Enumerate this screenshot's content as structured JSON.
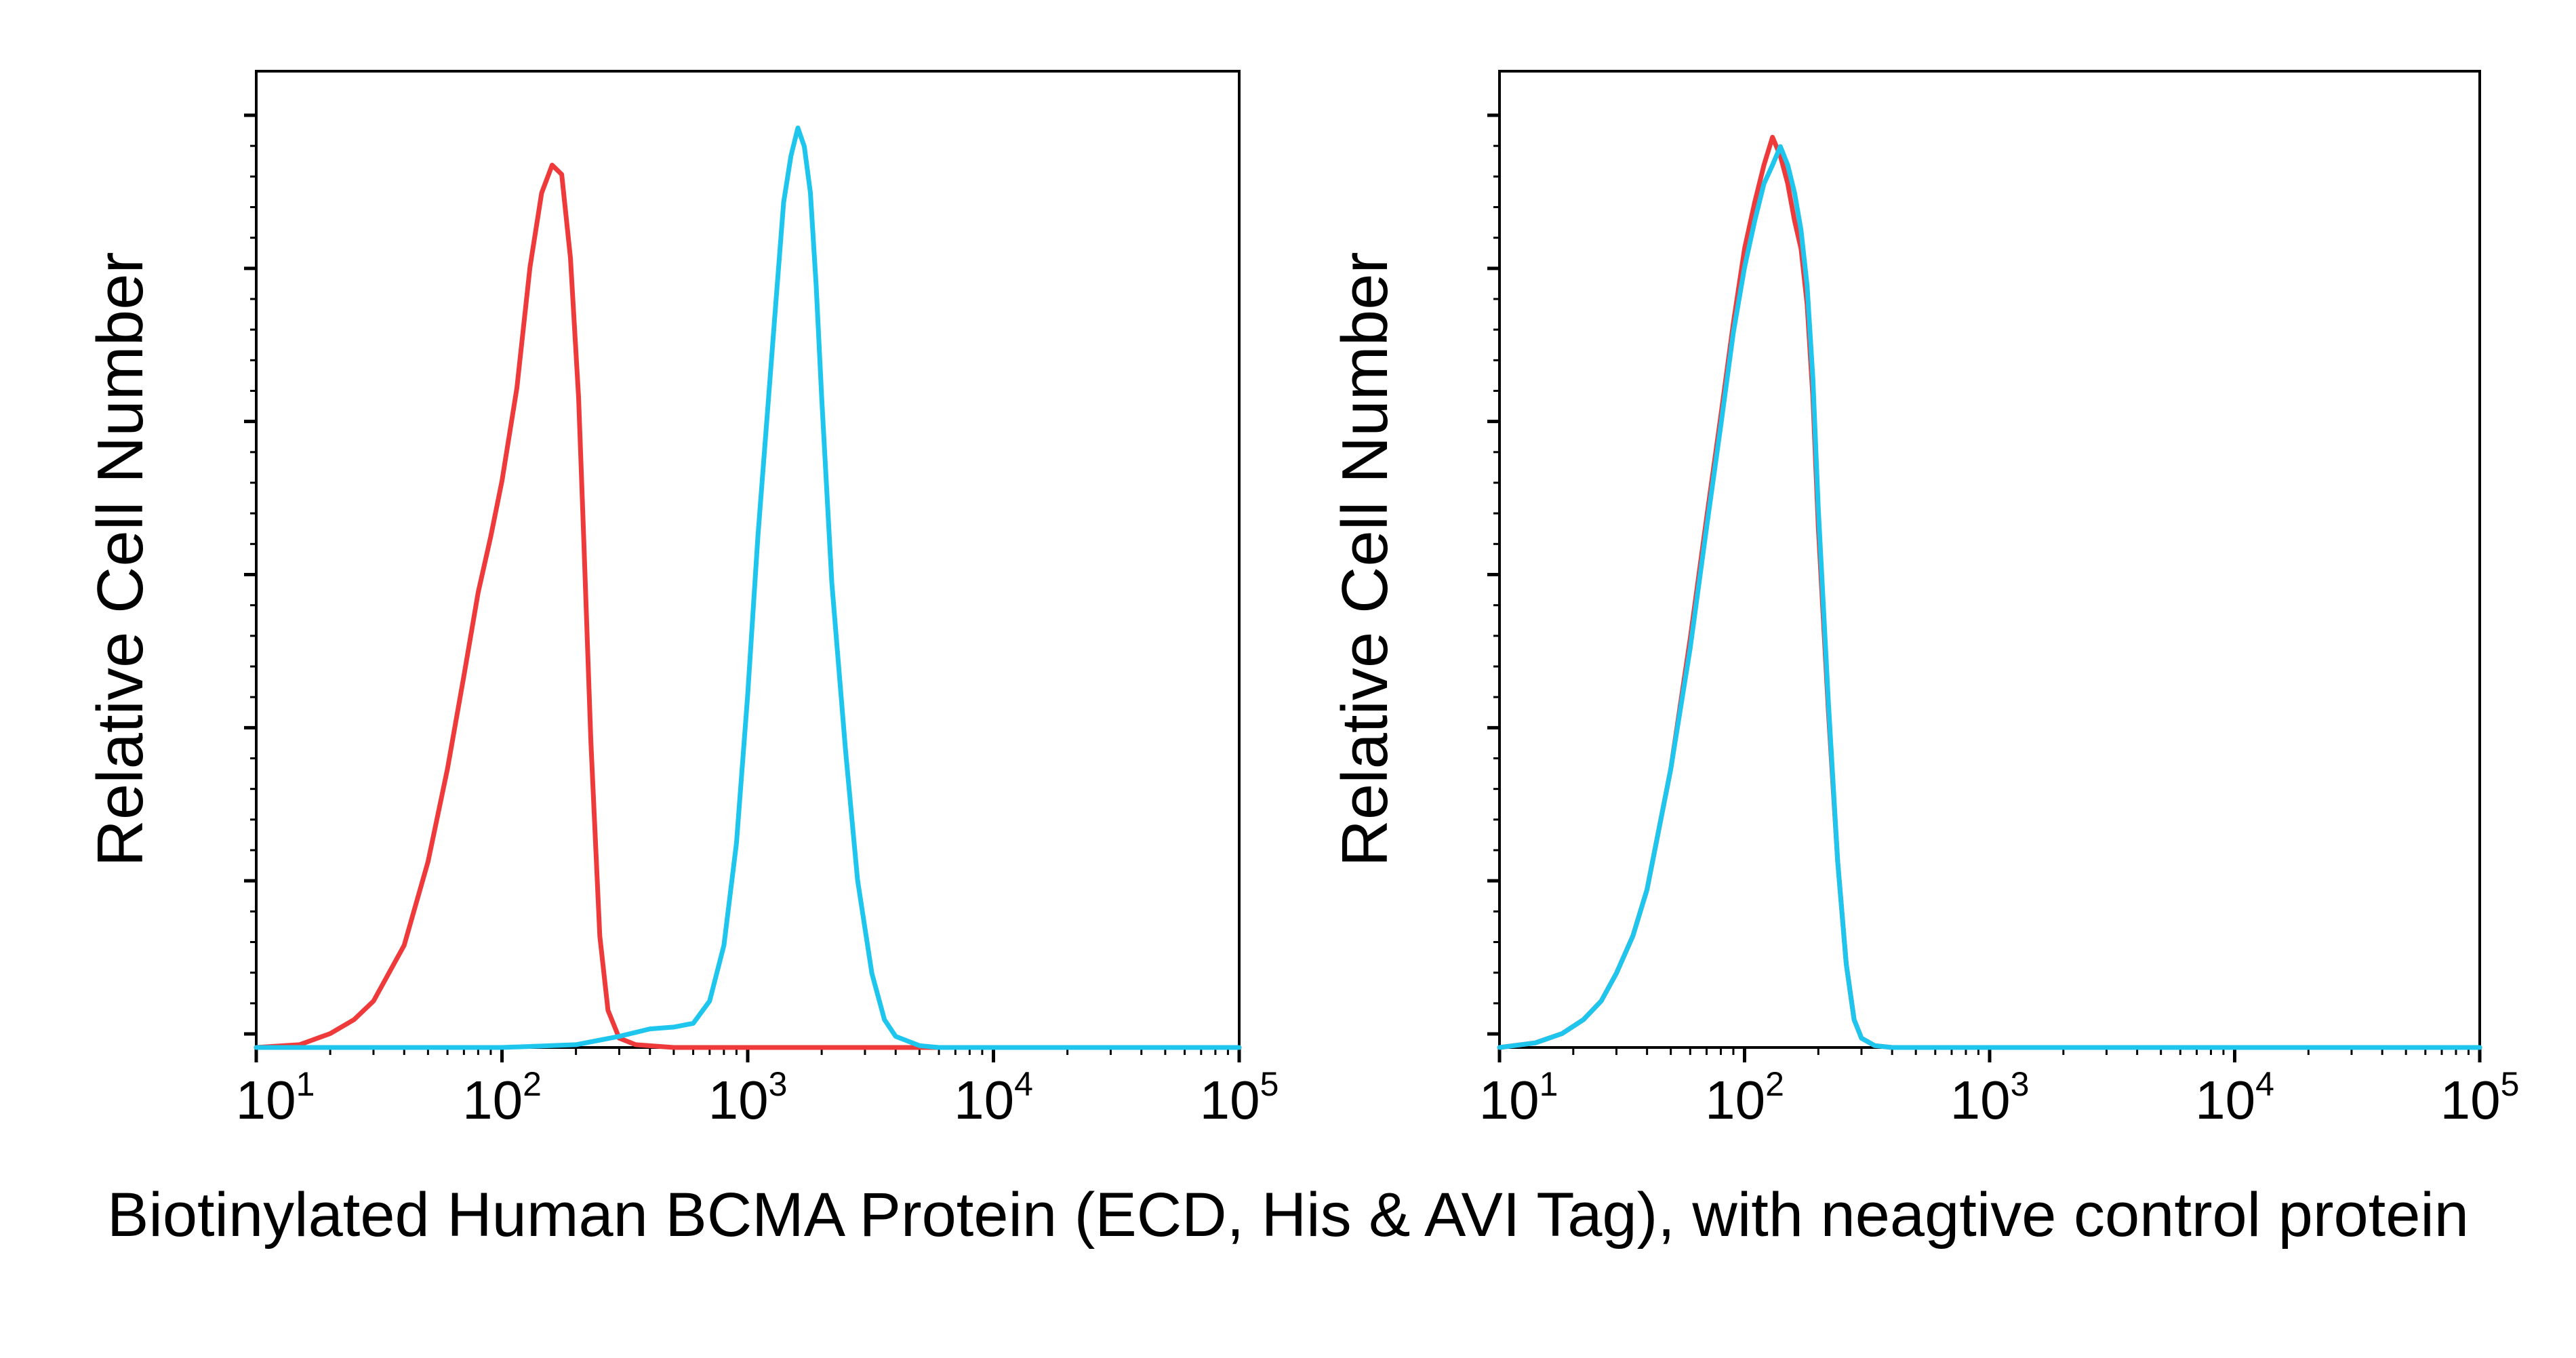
{
  "caption": "Biotinylated Human BCMA Protein (ECD, His & AVI Tag), with neagtive control protein",
  "chart_data": [
    {
      "type": "line",
      "ylabel": "Relative Cell Number",
      "x_scale": "log",
      "xlim": [
        10,
        100000
      ],
      "ylim": [
        0,
        100
      ],
      "x_ticks": [
        {
          "value": 10,
          "base": "10",
          "exp": "1"
        },
        {
          "value": 100,
          "base": "10",
          "exp": "2"
        },
        {
          "value": 1000,
          "base": "10",
          "exp": "3"
        },
        {
          "value": 10000,
          "base": "10",
          "exp": "4"
        },
        {
          "value": 100000,
          "base": "10",
          "exp": "5"
        }
      ],
      "series": [
        {
          "color": "#ee3a3a",
          "x": [
            10,
            15,
            20,
            25,
            30,
            40,
            50,
            60,
            70,
            80,
            90,
            100,
            115,
            130,
            145,
            160,
            175,
            190,
            205,
            215,
            230,
            250,
            270,
            300,
            350,
            500,
            1000,
            10000,
            100000
          ],
          "y": [
            0,
            0.3,
            1.5,
            3,
            5,
            11,
            20,
            30,
            40,
            49,
            55,
            61,
            71,
            84,
            92,
            95,
            94,
            85,
            70,
            55,
            33,
            12,
            4,
            1,
            0.3,
            0,
            0,
            0,
            0
          ]
        },
        {
          "color": "#1ec6ee",
          "x": [
            10,
            100,
            200,
            300,
            400,
            500,
            600,
            700,
            800,
            900,
            1000,
            1100,
            1200,
            1300,
            1400,
            1500,
            1600,
            1700,
            1800,
            1900,
            2000,
            2200,
            2500,
            2800,
            3200,
            3600,
            4000,
            5000,
            6000,
            10000,
            100000
          ],
          "y": [
            0,
            0,
            0.3,
            1.2,
            2,
            2.2,
            2.6,
            5,
            11,
            22,
            38,
            55,
            68,
            80,
            91,
            96,
            99,
            97,
            92,
            82,
            70,
            50,
            32,
            18,
            8,
            3,
            1.2,
            0.2,
            0,
            0,
            0
          ]
        }
      ]
    },
    {
      "type": "line",
      "ylabel": "Relative Cell Number",
      "x_scale": "log",
      "xlim": [
        10,
        100000
      ],
      "ylim": [
        0,
        100
      ],
      "x_ticks": [
        {
          "value": 10,
          "base": "10",
          "exp": "1"
        },
        {
          "value": 100,
          "base": "10",
          "exp": "2"
        },
        {
          "value": 1000,
          "base": "10",
          "exp": "3"
        },
        {
          "value": 10000,
          "base": "10",
          "exp": "4"
        },
        {
          "value": 100000,
          "base": "10",
          "exp": "5"
        }
      ],
      "series": [
        {
          "color": "#ee3a3a",
          "x": [
            10,
            14,
            18,
            22,
            26,
            30,
            35,
            40,
            50,
            60,
            70,
            80,
            90,
            100,
            110,
            120,
            130,
            140,
            150,
            160,
            170,
            180,
            190,
            200,
            220,
            240,
            260,
            280,
            300,
            340,
            400,
            1000,
            100000
          ],
          "y": [
            0,
            0.5,
            1.5,
            3,
            5,
            8,
            12,
            17,
            30,
            44,
            57,
            68,
            78,
            86,
            91,
            95,
            98,
            96,
            93,
            89,
            86,
            80,
            70,
            56,
            36,
            20,
            9,
            3,
            1,
            0.2,
            0,
            0,
            0
          ]
        },
        {
          "color": "#1ec6ee",
          "x": [
            10,
            14,
            18,
            22,
            26,
            30,
            35,
            40,
            50,
            60,
            70,
            80,
            90,
            100,
            110,
            120,
            130,
            140,
            150,
            160,
            170,
            180,
            190,
            200,
            220,
            240,
            260,
            280,
            300,
            340,
            400,
            1000,
            100000
          ],
          "y": [
            0,
            0.5,
            1.5,
            3,
            5,
            8,
            12,
            17,
            30,
            43,
            56,
            67,
            77,
            84,
            89,
            93,
            95,
            97,
            95,
            92,
            88,
            82,
            72,
            58,
            37,
            20,
            9,
            3,
            1,
            0.2,
            0,
            0,
            0
          ]
        }
      ]
    }
  ]
}
